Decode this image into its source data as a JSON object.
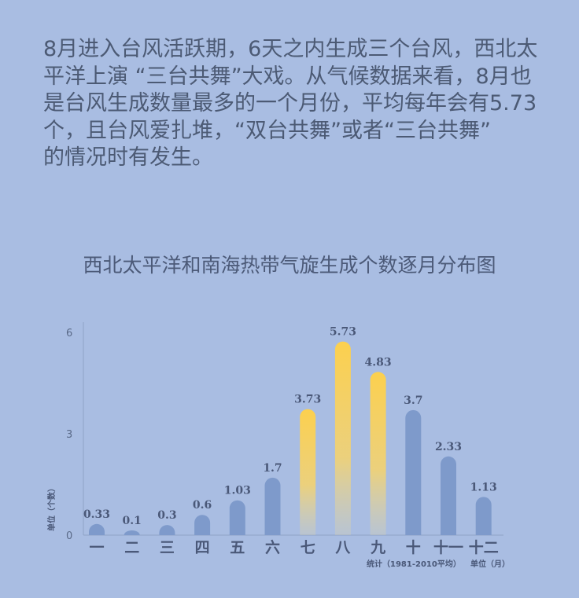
{
  "intro": {
    "lines": [
      "8月进入台风活跃期，6天之内生成三个台风，西北太",
      "平洋上演 “三台共舞”大戏。从气候数据来看，8月也",
      "是台风生成数量最多的一个月份，平均每年会有5.73",
      "个，且台风爱扎堆，“双台共舞”或者“三台共舞”",
      "的情况时有发生。"
    ]
  },
  "chart_data": {
    "type": "bar",
    "title": "西北太平洋和南海热带气旋生成个数逐月分布图",
    "categories": [
      "一",
      "二",
      "三",
      "四",
      "五",
      "六",
      "七",
      "八",
      "九",
      "十",
      "十一",
      "十二"
    ],
    "values": [
      0.33,
      0.1,
      0.3,
      0.6,
      1.03,
      1.7,
      3.73,
      5.73,
      4.83,
      3.7,
      2.33,
      1.13
    ],
    "value_labels": [
      "0.33",
      "0.1",
      "0.3",
      "0.6",
      "1.03",
      "1.7",
      "3.73",
      "5.73",
      "4.83",
      "3.7",
      "2.33",
      "1.13"
    ],
    "highlighted": [
      "七",
      "八",
      "九"
    ],
    "yticks": [
      "0",
      "3",
      "6"
    ],
    "ylim": [
      0,
      6
    ],
    "ylabel": "单位（个数）",
    "xlabel": "单位（月）",
    "note": "统计（1981-2010平均）",
    "grid": false,
    "colors": {
      "bar": "#7e9acb",
      "highlight": "#fcd04e",
      "background": "#a9bde2"
    }
  }
}
